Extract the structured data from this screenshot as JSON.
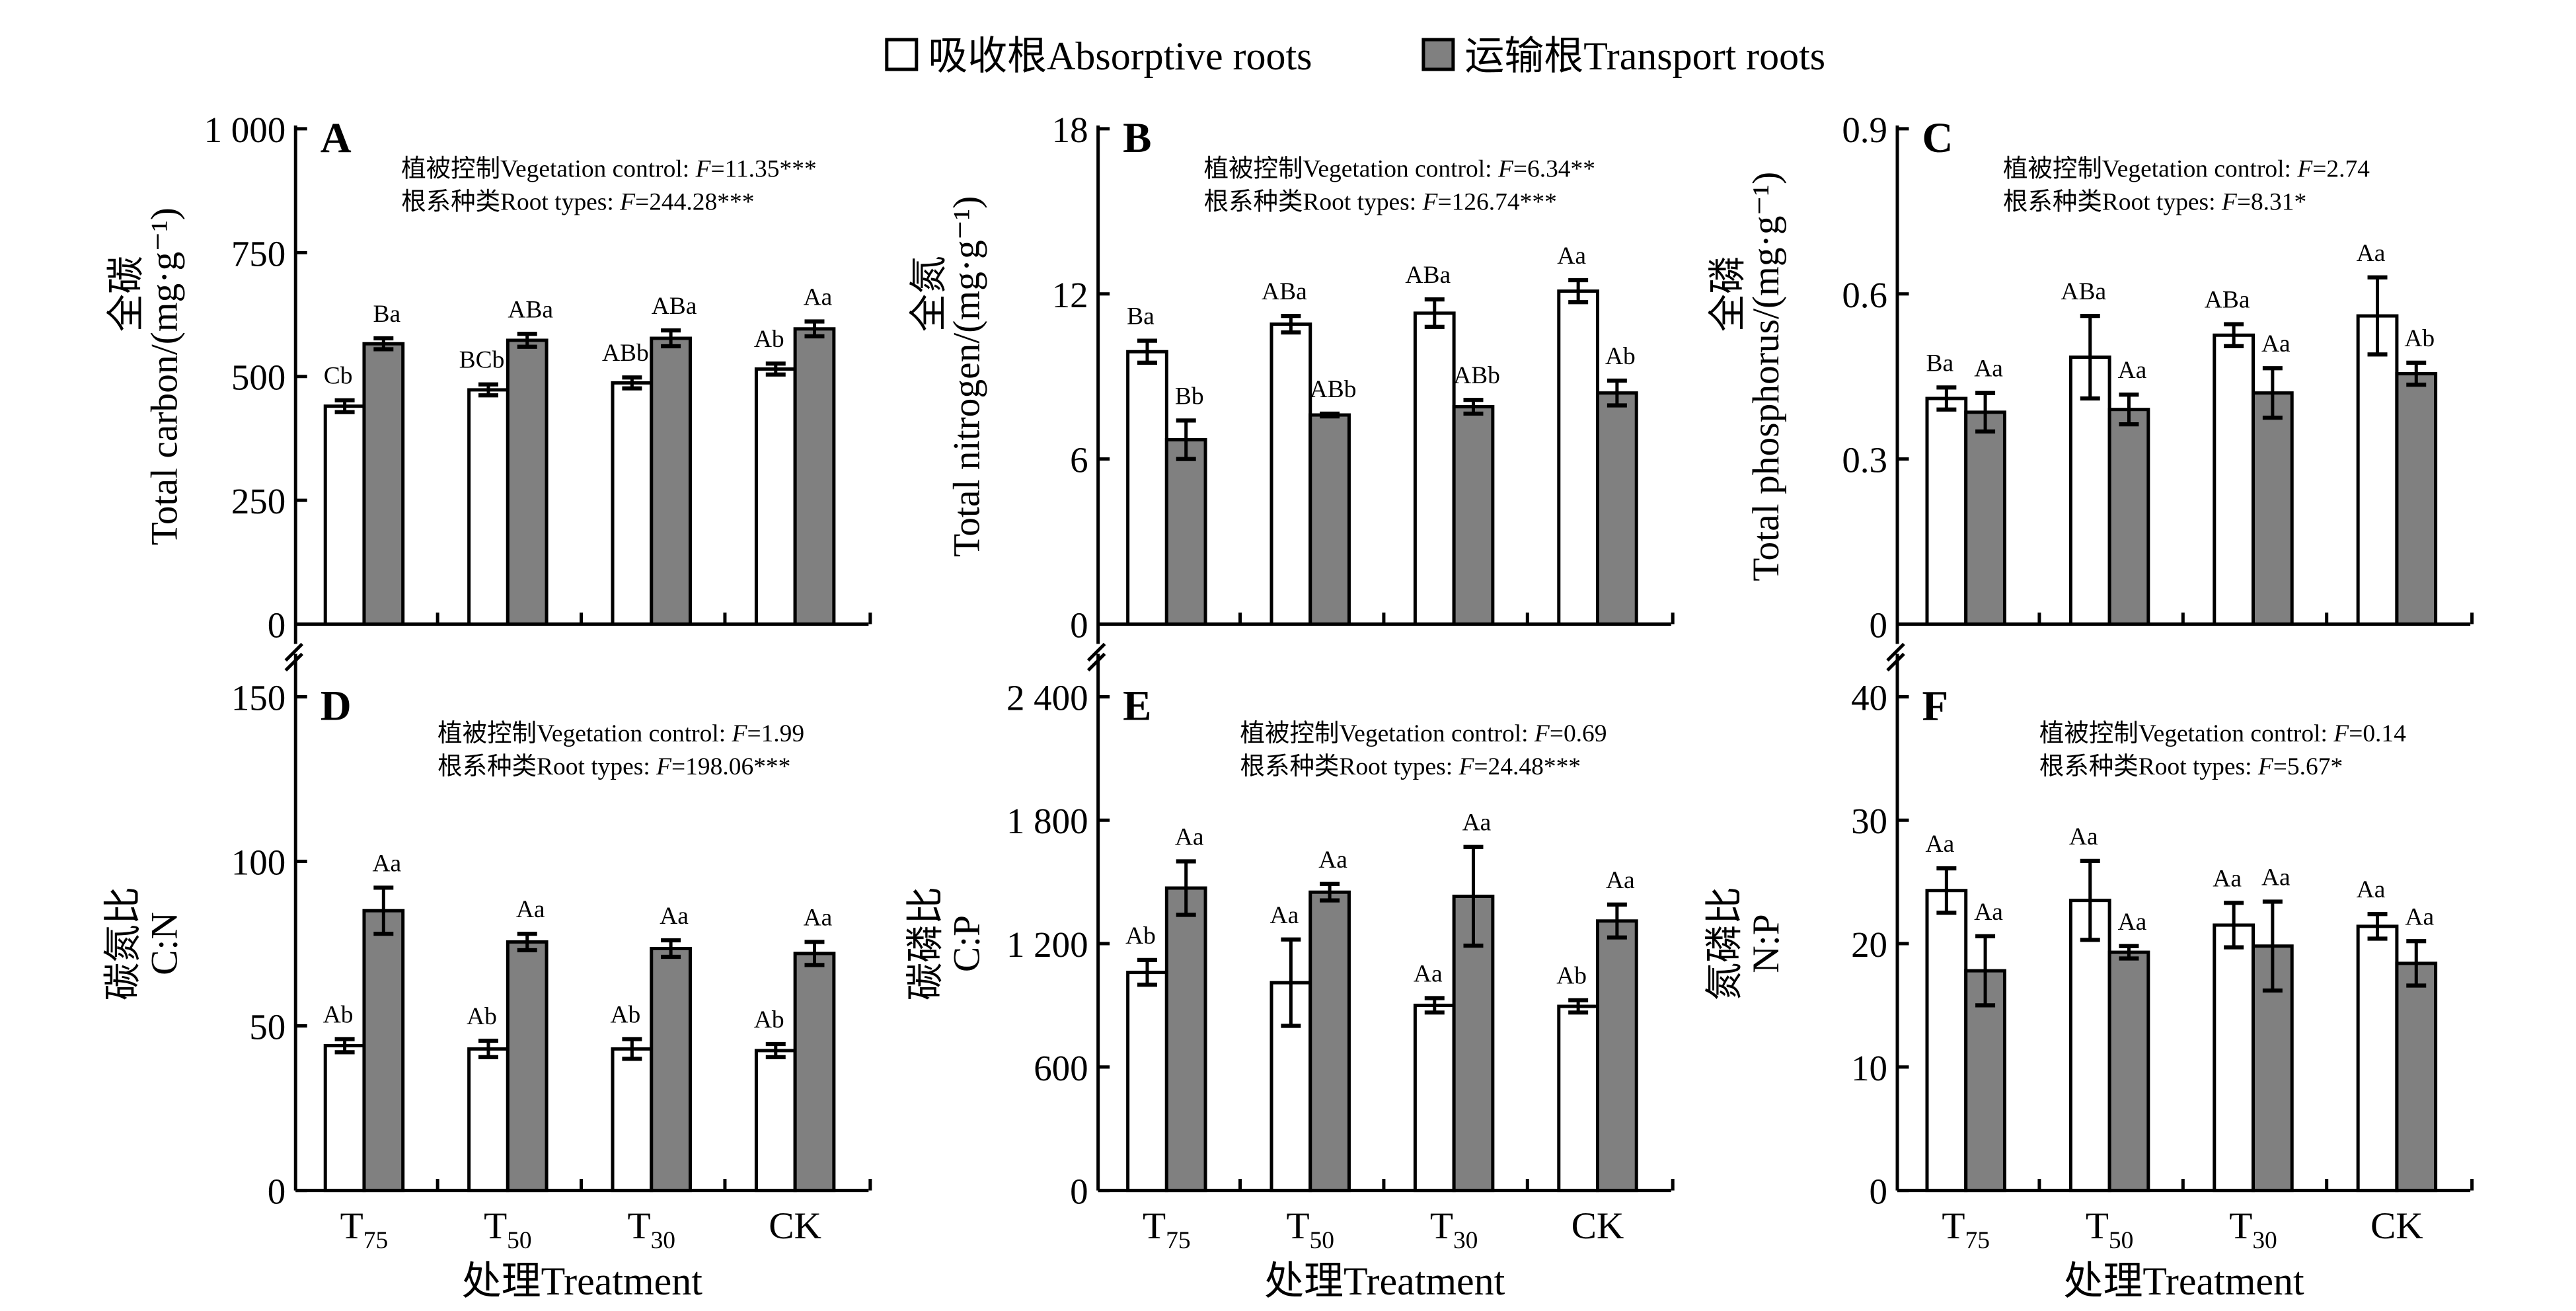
{
  "legend": {
    "absorptive": "吸收根Absorptive roots",
    "transport": "运输根Transport roots"
  },
  "colors": {
    "absorptive": "#ffffff",
    "transport": "#808080",
    "stroke": "#000000"
  },
  "x_title": "处理Treatment",
  "chart_data": [
    {
      "type": "bar",
      "panel": "A",
      "ylabel_cn": "全碳",
      "ylabel_en": "Total carbon/(mg·g⁻¹)",
      "ylim": [
        0,
        1000
      ],
      "yticks": [
        0,
        250,
        500,
        750,
        1000
      ],
      "ytick_labels": [
        "0",
        "250",
        "500",
        "750",
        "1 000"
      ],
      "annotation": [
        "植被控制Vegetation control: |F|=11.35***",
        "根系种类Root types: |F|=244.28***"
      ],
      "categories": [
        {
          "main": "T",
          "sub": "75"
        },
        {
          "main": "T",
          "sub": "50"
        },
        {
          "main": "T",
          "sub": "30"
        },
        {
          "main": "CK",
          "sub": ""
        }
      ],
      "series": [
        {
          "name": "吸收根Absorptive roots",
          "values": [
            440,
            473,
            487,
            515
          ],
          "errors": [
            12,
            11,
            11,
            11
          ],
          "letters": [
            "Cb",
            "BCb",
            "ABb",
            "Ab"
          ]
        },
        {
          "name": "运输根Transport roots",
          "values": [
            566,
            573,
            577,
            596
          ],
          "errors": [
            11,
            13,
            16,
            15
          ],
          "letters": [
            "Ba",
            "ABa",
            "ABa",
            "Aa"
          ]
        }
      ]
    },
    {
      "type": "bar",
      "panel": "B",
      "ylabel_cn": "全氮",
      "ylabel_en": "Total nitrogen/(mg·g⁻¹)",
      "ylim": [
        0,
        18
      ],
      "yticks": [
        0,
        6,
        12,
        18
      ],
      "ytick_labels": [
        "0",
        "6",
        "12",
        "18"
      ],
      "annotation": [
        "植被控制Vegetation control: |F|=6.34**",
        "根系种类Root types: |F|=126.74***"
      ],
      "categories": [
        {
          "main": "T",
          "sub": "75"
        },
        {
          "main": "T",
          "sub": "50"
        },
        {
          "main": "T",
          "sub": "30"
        },
        {
          "main": "CK",
          "sub": ""
        }
      ],
      "series": [
        {
          "name": "吸收根Absorptive roots",
          "values": [
            9.9,
            10.9,
            11.3,
            12.1
          ],
          "errors": [
            0.4,
            0.3,
            0.5,
            0.4
          ],
          "letters": [
            "Ba",
            "ABa",
            "ABa",
            "Aa"
          ]
        },
        {
          "name": "运输根Transport roots",
          "values": [
            6.7,
            7.6,
            7.9,
            8.4
          ],
          "errors": [
            0.7,
            0.05,
            0.25,
            0.45
          ],
          "letters": [
            "Bb",
            "ABb",
            "ABb",
            "Ab"
          ]
        }
      ]
    },
    {
      "type": "bar",
      "panel": "C",
      "ylabel_cn": "全磷",
      "ylabel_en": "Total phosphorus/(mg·g⁻¹)",
      "ylim": [
        0,
        0.9
      ],
      "yticks": [
        0,
        0.3,
        0.6,
        0.9
      ],
      "ytick_labels": [
        "0",
        "0.3",
        "0.6",
        "0.9"
      ],
      "annotation": [
        "植被控制Vegetation control: |F|=2.74",
        "根系种类Root types: |F|=8.31*"
      ],
      "categories": [
        {
          "main": "T",
          "sub": "75"
        },
        {
          "main": "T",
          "sub": "50"
        },
        {
          "main": "T",
          "sub": "30"
        },
        {
          "main": "CK",
          "sub": ""
        }
      ],
      "series": [
        {
          "name": "吸收根Absorptive roots",
          "values": [
            0.41,
            0.485,
            0.525,
            0.56
          ],
          "errors": [
            0.02,
            0.075,
            0.02,
            0.07
          ],
          "letters": [
            "Ba",
            "ABa",
            "ABa",
            "Aa"
          ]
        },
        {
          "name": "运输根Transport roots",
          "values": [
            0.385,
            0.39,
            0.42,
            0.455
          ],
          "errors": [
            0.035,
            0.027,
            0.045,
            0.02
          ],
          "letters": [
            "Aa",
            "Aa",
            "Aa",
            "Ab"
          ]
        }
      ]
    },
    {
      "type": "bar",
      "panel": "D",
      "ylabel_cn": "碳氮比",
      "ylabel_en": "C:N",
      "ylim": [
        0,
        150
      ],
      "yticks": [
        0,
        50,
        100,
        150
      ],
      "ytick_labels": [
        "0",
        "50",
        "100",
        "150"
      ],
      "annotation": [
        "植被控制Vegetation control: |F|=1.99",
        "根系种类Root types: |F|=198.06***"
      ],
      "categories": [
        {
          "main": "T",
          "sub": "75"
        },
        {
          "main": "T",
          "sub": "50"
        },
        {
          "main": "T",
          "sub": "30"
        },
        {
          "main": "CK",
          "sub": ""
        }
      ],
      "series": [
        {
          "name": "吸收根Absorptive roots",
          "values": [
            44,
            43,
            43,
            42.5
          ],
          "errors": [
            2,
            2.5,
            3,
            2
          ],
          "letters": [
            "Ab",
            "Ab",
            "Ab",
            "Ab"
          ]
        },
        {
          "name": "运输根Transport roots",
          "values": [
            85,
            75.5,
            73.5,
            72
          ],
          "errors": [
            7,
            2.5,
            2.5,
            3.5
          ],
          "letters": [
            "Aa",
            "Aa",
            "Aa",
            "Aa"
          ]
        }
      ]
    },
    {
      "type": "bar",
      "panel": "E",
      "ylabel_cn": "碳磷比",
      "ylabel_en": "C:P",
      "ylim": [
        0,
        2400
      ],
      "yticks": [
        0,
        600,
        1200,
        1800,
        2400
      ],
      "ytick_labels": [
        "0",
        "600",
        "1 200",
        "1 800",
        "2 400"
      ],
      "annotation": [
        "植被控制Vegetation control: |F|=0.69",
        "根系种类Root types: |F|=24.48***"
      ],
      "categories": [
        {
          "main": "T",
          "sub": "75"
        },
        {
          "main": "T",
          "sub": "50"
        },
        {
          "main": "T",
          "sub": "30"
        },
        {
          "main": "CK",
          "sub": ""
        }
      ],
      "series": [
        {
          "name": "吸收根Absorptive roots",
          "values": [
            1060,
            1010,
            900,
            895
          ],
          "errors": [
            60,
            210,
            35,
            30
          ],
          "letters": [
            "Ab",
            "Aa",
            "Aa",
            "Ab"
          ]
        },
        {
          "name": "运输根Transport roots",
          "values": [
            1470,
            1450,
            1430,
            1310
          ],
          "errors": [
            130,
            40,
            240,
            80
          ],
          "letters": [
            "Aa",
            "Aa",
            "Aa",
            "Aa"
          ]
        }
      ]
    },
    {
      "type": "bar",
      "panel": "F",
      "ylabel_cn": "氮磷比",
      "ylabel_en": "N:P",
      "ylim": [
        0,
        40
      ],
      "yticks": [
        0,
        10,
        20,
        30,
        40
      ],
      "ytick_labels": [
        "0",
        "10",
        "20",
        "30",
        "40"
      ],
      "annotation": [
        "植被控制Vegetation control: |F|=0.14",
        "根系种类Root types: |F|=5.67*"
      ],
      "categories": [
        {
          "main": "T",
          "sub": "75"
        },
        {
          "main": "T",
          "sub": "50"
        },
        {
          "main": "T",
          "sub": "30"
        },
        {
          "main": "CK",
          "sub": ""
        }
      ],
      "series": [
        {
          "name": "吸收根Absorptive roots",
          "values": [
            24.3,
            23.5,
            21.5,
            21.4
          ],
          "errors": [
            1.8,
            3.2,
            1.8,
            1.0
          ],
          "letters": [
            "Aa",
            "Aa",
            "Aa",
            "Aa"
          ]
        },
        {
          "name": "运输根Transport roots",
          "values": [
            17.8,
            19.3,
            19.8,
            18.4
          ],
          "errors": [
            2.8,
            0.5,
            3.6,
            1.8
          ],
          "letters": [
            "Aa",
            "Aa",
            "Aa",
            "Aa"
          ]
        }
      ]
    }
  ]
}
